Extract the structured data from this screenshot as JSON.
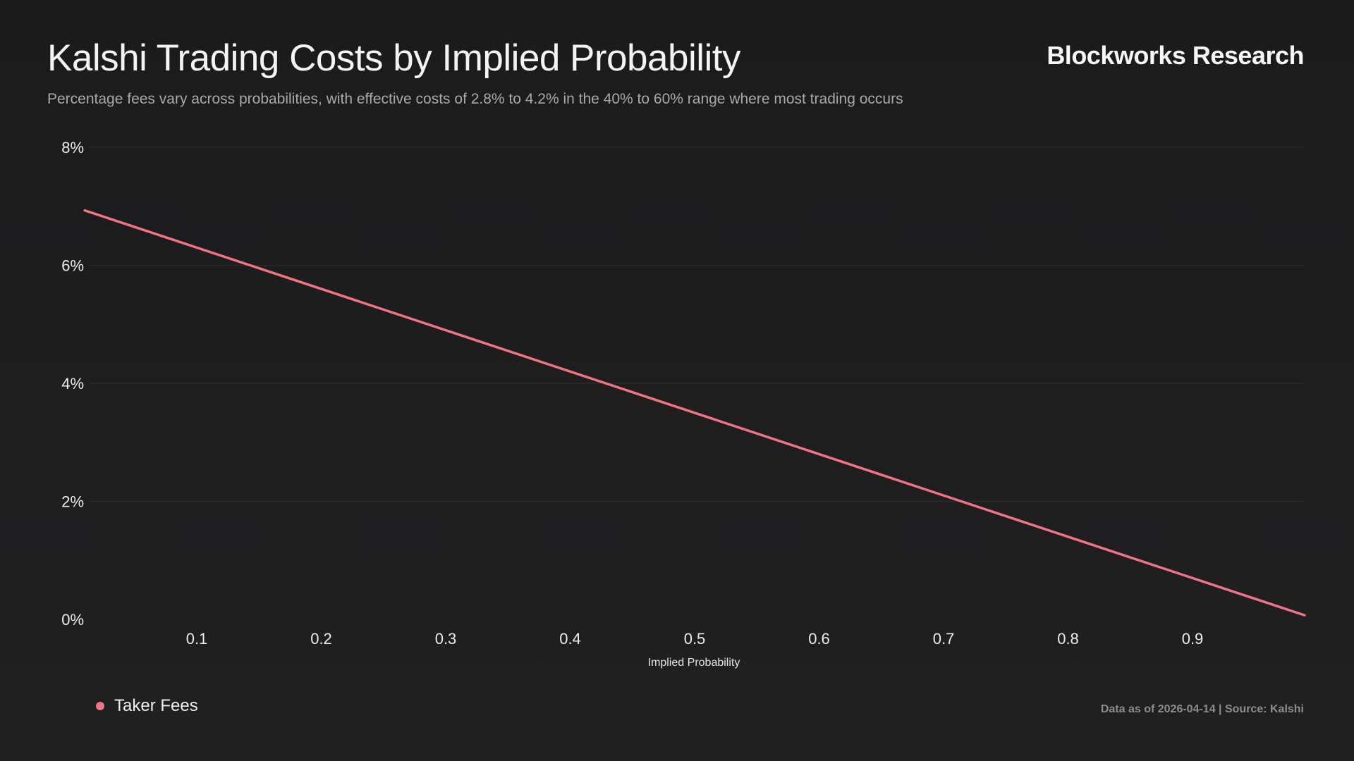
{
  "header": {
    "title": "Kalshi Trading Costs by Implied Probability",
    "subtitle": "Percentage fees vary across probabilities, with effective costs of 2.8% to 4.2% in the 40% to 60% range where most trading occurs",
    "brand": "Blockworks Research"
  },
  "footer": {
    "source": "Data as of 2026-04-14 | Source: Kalshi"
  },
  "colors": {
    "series": "#f07484",
    "background": "#1e1e1f",
    "grid": "#2a2a2b"
  },
  "chart_data": {
    "type": "line",
    "title": "Kalshi Trading Costs by Implied Probability",
    "xlabel": "Implied Probability",
    "ylabel": "",
    "xlim": [
      0,
      1
    ],
    "ylim": [
      0,
      8
    ],
    "x_ticks": [
      "0.1",
      "0.2",
      "0.3",
      "0.4",
      "0.5",
      "0.6",
      "0.7",
      "0.8",
      "0.9"
    ],
    "y_ticks": [
      "0%",
      "2%",
      "4%",
      "6%",
      "8%"
    ],
    "grid": "horizontal",
    "legend_position": "bottom-left",
    "series": [
      {
        "name": "Taker Fees",
        "x": [
          0.01,
          0.99
        ],
        "y": [
          6.93,
          0.07
        ]
      }
    ]
  }
}
